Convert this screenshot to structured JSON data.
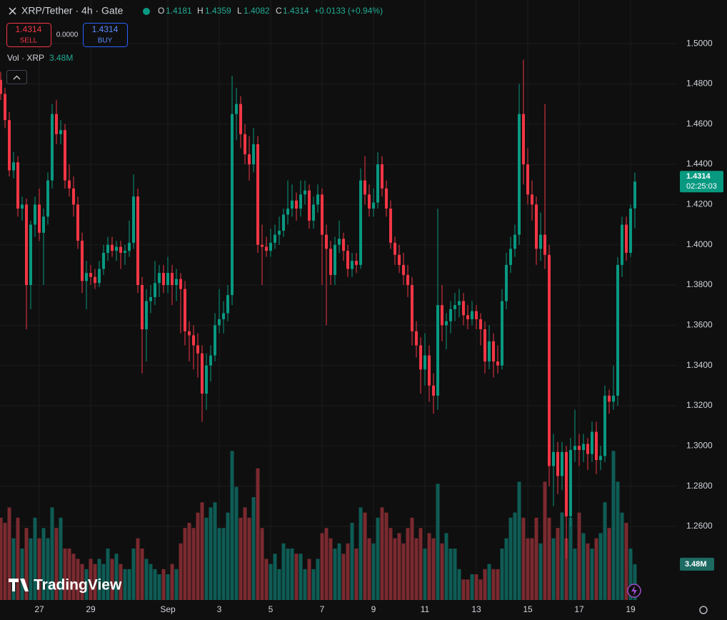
{
  "header": {
    "title": "XRP/Tether · 4h · Gate",
    "ohlc": [
      {
        "key": "O",
        "value": 1.4181
      },
      {
        "key": "H",
        "value": 1.4359
      },
      {
        "key": "L",
        "value": 1.4082
      },
      {
        "key": "C",
        "value": 1.4314
      }
    ],
    "change": "+0.0133 (+0.94%)",
    "sell": {
      "price": 1.4314,
      "label": "SELL"
    },
    "spread": "0.0000",
    "buy": {
      "price": 1.4314,
      "label": "BUY"
    },
    "logo": "TradingView"
  },
  "chart_data": {
    "type": "candlestick",
    "categories": [
      null,
      null,
      null,
      null,
      null,
      null,
      null,
      null,
      null,
      "27",
      null,
      null,
      null,
      null,
      null,
      null,
      null,
      null,
      null,
      null,
      null,
      "29",
      null,
      null,
      null,
      null,
      null,
      null,
      null,
      null,
      null,
      null,
      null,
      null,
      null,
      null,
      null,
      null,
      null,
      "Sep",
      null,
      null,
      null,
      null,
      null,
      null,
      null,
      null,
      null,
      null,
      null,
      "3",
      null,
      null,
      null,
      null,
      null,
      null,
      null,
      null,
      null,
      null,
      null,
      "5",
      null,
      null,
      null,
      null,
      null,
      null,
      null,
      null,
      null,
      null,
      null,
      "7",
      null,
      null,
      null,
      null,
      null,
      null,
      null,
      null,
      null,
      null,
      null,
      "9",
      null,
      null,
      null,
      null,
      null,
      null,
      null,
      null,
      null,
      null,
      null,
      "11",
      null,
      null,
      null,
      null,
      null,
      null,
      null,
      null,
      null,
      null,
      null,
      "13",
      null,
      null,
      null,
      null,
      null,
      null,
      null,
      null,
      null,
      null,
      null,
      "15",
      null,
      null,
      null,
      null,
      null,
      null,
      null,
      null,
      null,
      null,
      null,
      "17",
      null,
      null,
      null,
      null,
      null,
      null,
      null,
      null,
      null,
      null,
      null,
      "19",
      null
    ],
    "values": [
      [
        1.482,
        1.486,
        1.472,
        1.475
      ],
      [
        1.475,
        1.478,
        1.458,
        1.462
      ],
      [
        1.462,
        1.466,
        1.434,
        1.437
      ],
      [
        1.437,
        1.446,
        1.433,
        1.441
      ],
      [
        1.441,
        1.444,
        1.414,
        1.418
      ],
      [
        1.418,
        1.424,
        1.412,
        1.42
      ],
      [
        1.42,
        1.423,
        1.358,
        1.38
      ],
      [
        1.38,
        1.412,
        1.368,
        1.41
      ],
      [
        1.41,
        1.424,
        1.404,
        1.42
      ],
      [
        1.42,
        1.428,
        1.402,
        1.406
      ],
      [
        1.406,
        1.418,
        1.38,
        1.414
      ],
      [
        1.414,
        1.436,
        1.41,
        1.432
      ],
      [
        1.432,
        1.47,
        1.428,
        1.465
      ],
      [
        1.465,
        1.472,
        1.45,
        1.455
      ],
      [
        1.455,
        1.462,
        1.45,
        1.457
      ],
      [
        1.457,
        1.46,
        1.428,
        1.432
      ],
      [
        1.432,
        1.44,
        1.424,
        1.428
      ],
      [
        1.428,
        1.434,
        1.414,
        1.42
      ],
      [
        1.42,
        1.424,
        1.398,
        1.402
      ],
      [
        1.402,
        1.406,
        1.376,
        1.382
      ],
      [
        1.382,
        1.392,
        1.368,
        1.386
      ],
      [
        1.386,
        1.39,
        1.38,
        1.384
      ],
      [
        1.384,
        1.388,
        1.378,
        1.381
      ],
      [
        1.381,
        1.392,
        1.379,
        1.388
      ],
      [
        1.388,
        1.4,
        1.385,
        1.396
      ],
      [
        1.396,
        1.404,
        1.392,
        1.4
      ],
      [
        1.4,
        1.404,
        1.394,
        1.397
      ],
      [
        1.397,
        1.402,
        1.392,
        1.399
      ],
      [
        1.399,
        1.402,
        1.388,
        1.396
      ],
      [
        1.396,
        1.4,
        1.39,
        1.397
      ],
      [
        1.397,
        1.412,
        1.394,
        1.401
      ],
      [
        1.401,
        1.435,
        1.398,
        1.424
      ],
      [
        1.424,
        1.428,
        1.376,
        1.38
      ],
      [
        1.38,
        1.384,
        1.336,
        1.358
      ],
      [
        1.358,
        1.378,
        1.342,
        1.372
      ],
      [
        1.372,
        1.38,
        1.366,
        1.374
      ],
      [
        1.374,
        1.392,
        1.37,
        1.381
      ],
      [
        1.381,
        1.39,
        1.374,
        1.386
      ],
      [
        1.386,
        1.39,
        1.376,
        1.38
      ],
      [
        1.38,
        1.394,
        1.376,
        1.386
      ],
      [
        1.386,
        1.39,
        1.37,
        1.38
      ],
      [
        1.38,
        1.388,
        1.372,
        1.383
      ],
      [
        1.383,
        1.386,
        1.356,
        1.378
      ],
      [
        1.378,
        1.382,
        1.35,
        1.357
      ],
      [
        1.357,
        1.362,
        1.342,
        1.355
      ],
      [
        1.355,
        1.36,
        1.338,
        1.35
      ],
      [
        1.35,
        1.356,
        1.334,
        1.346
      ],
      [
        1.346,
        1.35,
        1.312,
        1.326
      ],
      [
        1.326,
        1.346,
        1.318,
        1.34
      ],
      [
        1.34,
        1.35,
        1.332,
        1.345
      ],
      [
        1.345,
        1.366,
        1.342,
        1.36
      ],
      [
        1.36,
        1.378,
        1.356,
        1.363
      ],
      [
        1.363,
        1.372,
        1.356,
        1.366
      ],
      [
        1.366,
        1.38,
        1.362,
        1.375
      ],
      [
        1.375,
        1.484,
        1.37,
        1.465
      ],
      [
        1.465,
        1.478,
        1.452,
        1.47
      ],
      [
        1.47,
        1.474,
        1.448,
        1.455
      ],
      [
        1.455,
        1.46,
        1.44,
        1.445
      ],
      [
        1.445,
        1.454,
        1.432,
        1.44
      ],
      [
        1.44,
        1.458,
        1.436,
        1.45
      ],
      [
        1.45,
        1.454,
        1.396,
        1.4
      ],
      [
        1.4,
        1.41,
        1.38,
        1.399
      ],
      [
        1.399,
        1.404,
        1.394,
        1.397
      ],
      [
        1.397,
        1.408,
        1.394,
        1.401
      ],
      [
        1.401,
        1.41,
        1.398,
        1.405
      ],
      [
        1.405,
        1.414,
        1.4,
        1.407
      ],
      [
        1.407,
        1.418,
        1.404,
        1.415
      ],
      [
        1.415,
        1.432,
        1.41,
        1.418
      ],
      [
        1.418,
        1.43,
        1.414,
        1.422
      ],
      [
        1.422,
        1.426,
        1.412,
        1.418
      ],
      [
        1.418,
        1.432,
        1.414,
        1.425
      ],
      [
        1.425,
        1.432,
        1.42,
        1.427
      ],
      [
        1.427,
        1.43,
        1.408,
        1.412
      ],
      [
        1.412,
        1.424,
        1.408,
        1.42
      ],
      [
        1.42,
        1.43,
        1.416,
        1.425
      ],
      [
        1.425,
        1.428,
        1.38,
        1.405
      ],
      [
        1.405,
        1.41,
        1.36,
        1.398
      ],
      [
        1.398,
        1.402,
        1.38,
        1.385
      ],
      [
        1.385,
        1.404,
        1.38,
        1.4
      ],
      [
        1.4,
        1.412,
        1.396,
        1.403
      ],
      [
        1.403,
        1.406,
        1.392,
        1.397
      ],
      [
        1.397,
        1.4,
        1.384,
        1.388
      ],
      [
        1.388,
        1.396,
        1.384,
        1.392
      ],
      [
        1.392,
        1.396,
        1.386,
        1.39
      ],
      [
        1.39,
        1.438,
        1.388,
        1.432
      ],
      [
        1.432,
        1.444,
        1.42,
        1.425
      ],
      [
        1.425,
        1.43,
        1.414,
        1.418
      ],
      [
        1.418,
        1.428,
        1.414,
        1.421
      ],
      [
        1.421,
        1.446,
        1.418,
        1.44
      ],
      [
        1.44,
        1.444,
        1.424,
        1.428
      ],
      [
        1.428,
        1.432,
        1.414,
        1.418
      ],
      [
        1.418,
        1.422,
        1.398,
        1.401
      ],
      [
        1.401,
        1.404,
        1.39,
        1.395
      ],
      [
        1.395,
        1.4,
        1.386,
        1.39
      ],
      [
        1.39,
        1.396,
        1.38,
        1.385
      ],
      [
        1.385,
        1.39,
        1.374,
        1.38
      ],
      [
        1.38,
        1.384,
        1.35,
        1.357
      ],
      [
        1.357,
        1.362,
        1.344,
        1.35
      ],
      [
        1.35,
        1.354,
        1.326,
        1.338
      ],
      [
        1.338,
        1.356,
        1.33,
        1.345
      ],
      [
        1.345,
        1.35,
        1.322,
        1.33
      ],
      [
        1.33,
        1.336,
        1.316,
        1.325
      ],
      [
        1.325,
        1.418,
        1.318,
        1.37
      ],
      [
        1.37,
        1.38,
        1.352,
        1.36
      ],
      [
        1.36,
        1.366,
        1.348,
        1.362
      ],
      [
        1.362,
        1.372,
        1.356,
        1.368
      ],
      [
        1.368,
        1.376,
        1.362,
        1.37
      ],
      [
        1.37,
        1.378,
        1.364,
        1.372
      ],
      [
        1.372,
        1.376,
        1.36,
        1.365
      ],
      [
        1.365,
        1.37,
        1.358,
        1.363
      ],
      [
        1.363,
        1.372,
        1.36,
        1.367
      ],
      [
        1.367,
        1.37,
        1.358,
        1.363
      ],
      [
        1.363,
        1.366,
        1.35,
        1.358
      ],
      [
        1.358,
        1.362,
        1.336,
        1.342
      ],
      [
        1.342,
        1.36,
        1.338,
        1.352
      ],
      [
        1.352,
        1.356,
        1.334,
        1.342
      ],
      [
        1.342,
        1.35,
        1.336,
        1.34
      ],
      [
        1.34,
        1.378,
        1.338,
        1.372
      ],
      [
        1.372,
        1.396,
        1.368,
        1.39
      ],
      [
        1.39,
        1.404,
        1.386,
        1.398
      ],
      [
        1.398,
        1.41,
        1.394,
        1.405
      ],
      [
        1.405,
        1.48,
        1.4,
        1.465
      ],
      [
        1.465,
        1.492,
        1.43,
        1.44
      ],
      [
        1.44,
        1.448,
        1.42,
        1.425
      ],
      [
        1.425,
        1.432,
        1.412,
        1.42
      ],
      [
        1.42,
        1.424,
        1.39,
        1.398
      ],
      [
        1.398,
        1.416,
        1.392,
        1.405
      ],
      [
        1.405,
        1.47,
        1.388,
        1.395
      ],
      [
        1.395,
        1.4,
        1.28,
        1.29
      ],
      [
        1.29,
        1.306,
        1.27,
        1.297
      ],
      [
        1.297,
        1.302,
        1.276,
        1.285
      ],
      [
        1.285,
        1.302,
        1.278,
        1.297
      ],
      [
        1.297,
        1.3,
        1.244,
        1.265
      ],
      [
        1.265,
        1.304,
        1.26,
        1.298
      ],
      [
        1.298,
        1.318,
        1.292,
        1.3
      ],
      [
        1.3,
        1.306,
        1.29,
        1.298
      ],
      [
        1.298,
        1.306,
        1.292,
        1.301
      ],
      [
        1.301,
        1.304,
        1.288,
        1.296
      ],
      [
        1.296,
        1.312,
        1.292,
        1.307
      ],
      [
        1.307,
        1.312,
        1.286,
        1.293
      ],
      [
        1.293,
        1.3,
        1.288,
        1.295
      ],
      [
        1.295,
        1.33,
        1.292,
        1.325
      ],
      [
        1.325,
        1.328,
        1.316,
        1.322
      ],
      [
        1.322,
        1.34,
        1.318,
        1.325
      ],
      [
        1.325,
        1.394,
        1.32,
        1.39
      ],
      [
        1.39,
        1.414,
        1.384,
        1.41
      ],
      [
        1.41,
        1.414,
        1.392,
        1.396
      ],
      [
        1.396,
        1.42,
        1.394,
        1.418
      ],
      [
        1.4181,
        1.4359,
        1.4082,
        1.4314
      ]
    ],
    "up_color": "#089981",
    "down_color": "#f23645",
    "ylim": [
      1.2234,
      1.5217
    ],
    "yticks": [
      {
        "value": 1.26,
        "label": "1.2600"
      },
      {
        "value": 1.28,
        "label": "1.2800"
      },
      {
        "value": 1.3,
        "label": "1.3000"
      },
      {
        "value": 1.32,
        "label": "1.3200"
      },
      {
        "value": 1.34,
        "label": "1.3400"
      },
      {
        "value": 1.36,
        "label": "1.3600"
      },
      {
        "value": 1.38,
        "label": "1.3800"
      },
      {
        "value": 1.4,
        "label": "1.4000"
      },
      {
        "value": 1.42,
        "label": "1.4200"
      },
      {
        "value": 1.44,
        "label": "1.4400"
      },
      {
        "value": 1.46,
        "label": "1.4600"
      },
      {
        "value": 1.48,
        "label": "1.4800"
      },
      {
        "value": 1.5,
        "label": "1.5000"
      }
    ],
    "grid": true,
    "last_price": {
      "value": 1.4314,
      "label": "1.4314",
      "countdown": "02:25:03"
    },
    "volume": {
      "name": "Vol · XRP",
      "last_label": "3.48M",
      "ylim": [
        0,
        20
      ],
      "up_color": "#0e5c55",
      "down_color": "#7a2a2f",
      "values": [
        8,
        7.5,
        9,
        6,
        8,
        5,
        7,
        6,
        8,
        6,
        7,
        6,
        9,
        7,
        8,
        5,
        5,
        4.5,
        4,
        3.5,
        3,
        4,
        3.5,
        4,
        3.5,
        5,
        4,
        4.5,
        3.5,
        3,
        3,
        5,
        6,
        5,
        4,
        3.5,
        3,
        2.5,
        3,
        2.5,
        3.5,
        3,
        5.5,
        7,
        7.5,
        7,
        8.5,
        9.5,
        8,
        9,
        9.5,
        7,
        7,
        8.5,
        14.5,
        11,
        8,
        9,
        8,
        10,
        12.8,
        7,
        4,
        3.5,
        4.5,
        3,
        5.5,
        5,
        5,
        4.5,
        4.5,
        3,
        4,
        3,
        4,
        6.5,
        7,
        6,
        5,
        5.5,
        4.5,
        5.5,
        7.5,
        5,
        9,
        8.5,
        6,
        5.5,
        8,
        9,
        8.5,
        7,
        6,
        6.5,
        5.5,
        7,
        8,
        6,
        7,
        5,
        6.5,
        6,
        11.3,
        5.5,
        6.5,
        5,
        5,
        3,
        2,
        2,
        2.5,
        2.5,
        2,
        3,
        3.5,
        3,
        3,
        5,
        6,
        8,
        8.5,
        11.5,
        8,
        6,
        6,
        8,
        5.5,
        11.5,
        8,
        6,
        7,
        8.5,
        6,
        8,
        5,
        8.5,
        6.5,
        5.5,
        5,
        6,
        6.5,
        9.5,
        7,
        14.5,
        11.5,
        8.5,
        7.5,
        5,
        3.48
      ]
    }
  }
}
